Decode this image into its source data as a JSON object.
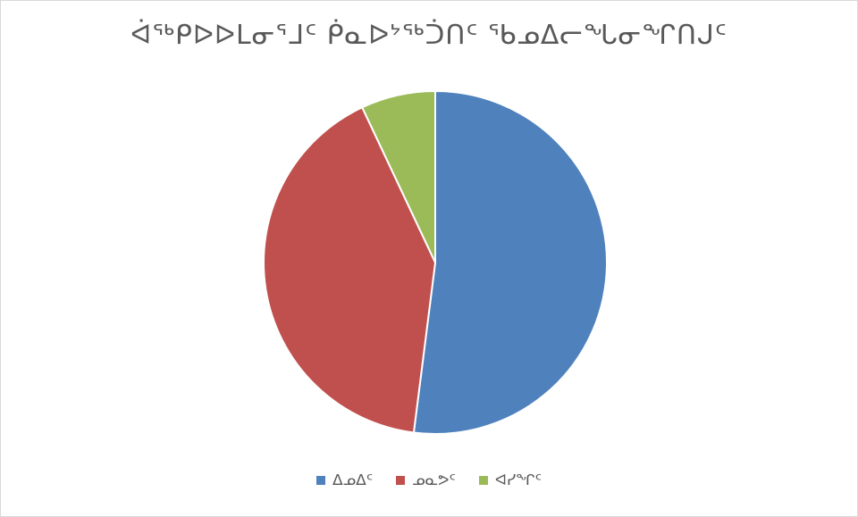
{
  "chart_data": {
    "type": "pie",
    "title": "ᐋᖅᑭᐅᐅᒪᓂᕐᒧᑦ ᑮᓇᐅᔾᖅᑑᑎᑦ ᖃᓄᐃᓕᖓᓂᖏᑎᒍᑦ",
    "categories": [
      "ᐃᓄᐃᑦ",
      "ᓄᓇᕗᑦ",
      "ᐊᓯᖏᑦ"
    ],
    "values": [
      52,
      41,
      7
    ],
    "colors": [
      "#4f81bd",
      "#c0504d",
      "#9bbb59"
    ],
    "legend_position": "bottom"
  }
}
